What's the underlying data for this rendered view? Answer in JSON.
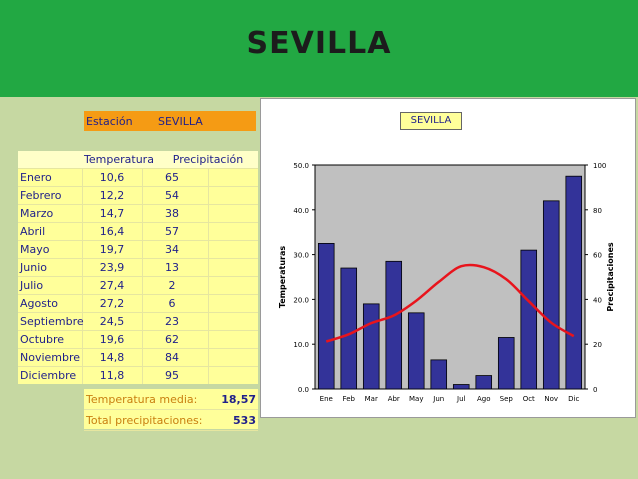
{
  "header": {
    "title": "SEVILLA"
  },
  "station": {
    "label": "Estación",
    "value": "SEVILLA"
  },
  "table": {
    "headers": [
      "Temperatura",
      "Precipitación"
    ],
    "rows": [
      {
        "month": "Enero",
        "temp": "10,6",
        "prec": "65"
      },
      {
        "month": "Febrero",
        "temp": "12,2",
        "prec": "54"
      },
      {
        "month": "Marzo",
        "temp": "14,7",
        "prec": "38"
      },
      {
        "month": "Abril",
        "temp": "16,4",
        "prec": "57"
      },
      {
        "month": "Mayo",
        "temp": "19,7",
        "prec": "34"
      },
      {
        "month": "Junio",
        "temp": "23,9",
        "prec": "13"
      },
      {
        "month": "Julio",
        "temp": "27,4",
        "prec": "2"
      },
      {
        "month": "Agosto",
        "temp": "27,2",
        "prec": "6"
      },
      {
        "month": "Septiembre",
        "temp": "24,5",
        "prec": "23"
      },
      {
        "month": "Octubre",
        "temp": "19,6",
        "prec": "62"
      },
      {
        "month": "Noviembre",
        "temp": "14,8",
        "prec": "84"
      },
      {
        "month": "Diciembre",
        "temp": "11,8",
        "prec": "95"
      }
    ]
  },
  "summary": {
    "temp_label": "Temperatura media:",
    "temp_value": "18,57",
    "prec_label": "Total precipitaciones:",
    "prec_value": "533"
  },
  "chart_data": {
    "type": "bar",
    "title": "SEVILLA",
    "categories": [
      "Ene",
      "Feb",
      "Mar",
      "Abr",
      "May",
      "Jun",
      "Jul",
      "Ago",
      "Sep",
      "Oct",
      "Nov",
      "Dic"
    ],
    "ylabel": "Temperaturas",
    "ylabel_right": "Precipitaciones",
    "ylim": [
      0,
      50
    ],
    "ylim_right": [
      0,
      100
    ],
    "yticks": [
      "0.0",
      "10.0",
      "20.0",
      "30.0",
      "40.0",
      "50.0"
    ],
    "yticks_right": [
      "0",
      "20",
      "40",
      "60",
      "80",
      "100"
    ],
    "grid": false,
    "series": [
      {
        "type": "bar",
        "axis": "right",
        "color": "#333399",
        "values": [
          65,
          54,
          38,
          57,
          34,
          13,
          2,
          6,
          23,
          62,
          84,
          95
        ]
      },
      {
        "type": "line",
        "axis": "left",
        "color": "#e8141c",
        "values": [
          10.6,
          12.2,
          14.7,
          16.4,
          19.7,
          23.9,
          27.4,
          27.2,
          24.5,
          19.6,
          14.8,
          11.8
        ]
      }
    ],
    "plot_bg": "#c0c0c0"
  }
}
